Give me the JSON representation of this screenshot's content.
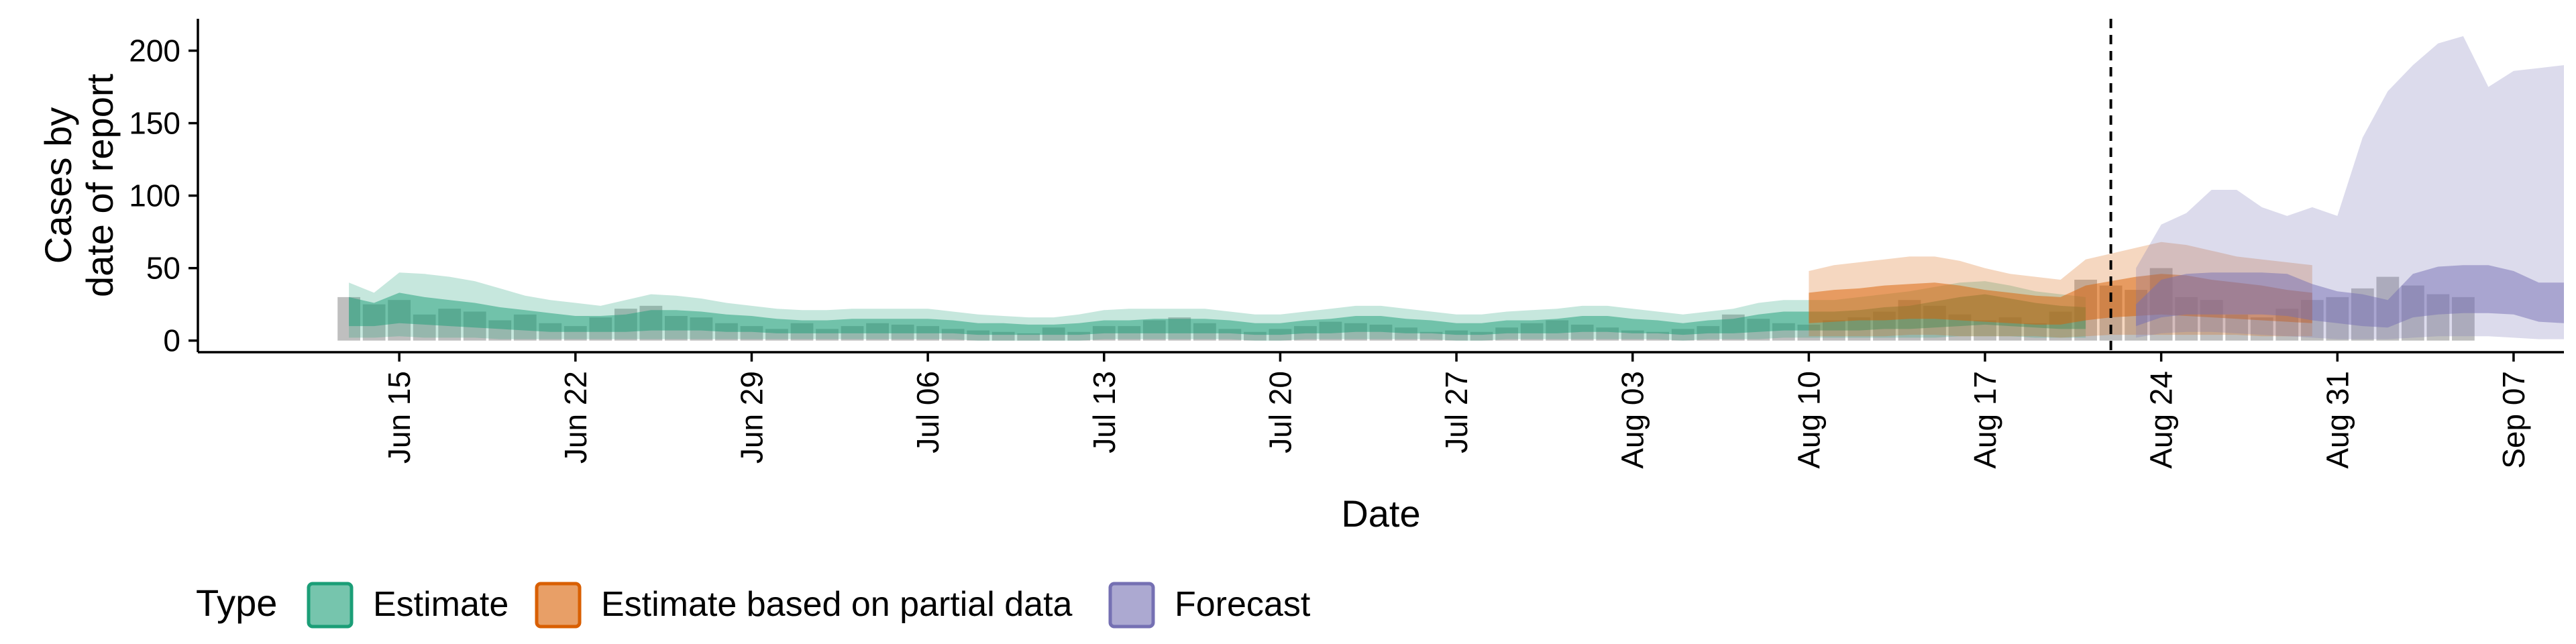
{
  "chart_data": {
    "type": "area",
    "xlabel": "Date",
    "ylabel": [
      "Cases by",
      "date of report"
    ],
    "ylim": [
      -8,
      222
    ],
    "xlim": [
      "2020-06-07",
      "2020-09-09"
    ],
    "y_ticks": [
      0,
      50,
      100,
      150,
      200
    ],
    "x_ticks": [
      {
        "date": "2020-06-15",
        "label": "Jun 15"
      },
      {
        "date": "2020-06-22",
        "label": "Jun 22"
      },
      {
        "date": "2020-06-29",
        "label": "Jun 29"
      },
      {
        "date": "2020-07-06",
        "label": "Jul 06"
      },
      {
        "date": "2020-07-13",
        "label": "Jul 13"
      },
      {
        "date": "2020-07-20",
        "label": "Jul 20"
      },
      {
        "date": "2020-07-27",
        "label": "Jul 27"
      },
      {
        "date": "2020-08-03",
        "label": "Aug 03"
      },
      {
        "date": "2020-08-10",
        "label": "Aug 10"
      },
      {
        "date": "2020-08-17",
        "label": "Aug 17"
      },
      {
        "date": "2020-08-24",
        "label": "Aug 24"
      },
      {
        "date": "2020-08-31",
        "label": "Aug 31"
      },
      {
        "date": "2020-09-07",
        "label": "Sep 07"
      }
    ],
    "reference_line": {
      "date": "2020-08-22",
      "style": "dashed"
    },
    "grid": false,
    "legend": {
      "title": "Type",
      "position": "bottom",
      "entries": [
        {
          "label": "Estimate",
          "color": "#1b9e77"
        },
        {
          "label": "Estimate based on partial data",
          "color": "#d95f02"
        },
        {
          "label": "Forecast",
          "color": "#7570b3"
        }
      ]
    },
    "observed_bars": {
      "color": "#808080",
      "start_date": "2020-06-13",
      "values": [
        30,
        25,
        28,
        18,
        22,
        20,
        14,
        18,
        12,
        10,
        16,
        22,
        24,
        17,
        16,
        12,
        10,
        8,
        12,
        8,
        10,
        12,
        11,
        10,
        8,
        7,
        6,
        5,
        9,
        6,
        10,
        10,
        14,
        16,
        12,
        8,
        6,
        8,
        10,
        13,
        12,
        11,
        9,
        6,
        7,
        6,
        9,
        12,
        14,
        11,
        9,
        7,
        6,
        8,
        10,
        18,
        15,
        12,
        11,
        14,
        16,
        20,
        28,
        24,
        18,
        14,
        16,
        12,
        20,
        42,
        38,
        35,
        50,
        30,
        28,
        18,
        16,
        22,
        28,
        30,
        36,
        44,
        38,
        32,
        30
      ]
    },
    "series": [
      {
        "name": "Estimate",
        "color": "#1b9e77",
        "start_date": "2020-06-13",
        "median": [
          21,
          17,
          23,
          20,
          18,
          17,
          15,
          14,
          12,
          11,
          11,
          12,
          14,
          14,
          13,
          12,
          11,
          10,
          9,
          9,
          10,
          10,
          10,
          10,
          9,
          8,
          8,
          7,
          7,
          8,
          9,
          9,
          10,
          10,
          10,
          9,
          8,
          8,
          9,
          10,
          11,
          11,
          10,
          9,
          8,
          8,
          9,
          9,
          10,
          11,
          11,
          10,
          9,
          8,
          9,
          10,
          12,
          13,
          13,
          13,
          14,
          15,
          16,
          18,
          20,
          21,
          19,
          17,
          16,
          15
        ],
        "inner_lower": [
          10,
          10,
          12,
          11,
          10,
          9,
          8,
          7,
          6,
          6,
          6,
          6,
          7,
          7,
          7,
          6,
          6,
          5,
          5,
          5,
          5,
          5,
          5,
          5,
          5,
          4,
          4,
          4,
          4,
          4,
          5,
          5,
          5,
          5,
          5,
          5,
          4,
          4,
          5,
          5,
          6,
          6,
          5,
          5,
          4,
          4,
          5,
          5,
          5,
          6,
          6,
          5,
          5,
          4,
          5,
          5,
          6,
          7,
          7,
          7,
          7,
          8,
          8,
          9,
          10,
          11,
          10,
          9,
          8,
          8
        ],
        "inner_upper": [
          30,
          26,
          33,
          30,
          28,
          26,
          23,
          21,
          19,
          17,
          17,
          18,
          21,
          21,
          20,
          18,
          17,
          15,
          14,
          14,
          15,
          15,
          15,
          15,
          14,
          12,
          12,
          11,
          11,
          12,
          14,
          14,
          15,
          15,
          15,
          14,
          12,
          12,
          14,
          15,
          17,
          17,
          15,
          14,
          12,
          12,
          14,
          14,
          15,
          17,
          17,
          15,
          14,
          12,
          14,
          15,
          18,
          20,
          20,
          20,
          21,
          23,
          24,
          27,
          30,
          32,
          29,
          26,
          24,
          23
        ],
        "outer_lower": [
          2,
          2,
          3,
          2,
          2,
          2,
          1,
          1,
          1,
          1,
          1,
          1,
          1,
          1,
          1,
          1,
          1,
          1,
          1,
          1,
          1,
          1,
          1,
          1,
          1,
          0,
          0,
          0,
          0,
          0,
          1,
          1,
          1,
          1,
          1,
          1,
          0,
          0,
          1,
          1,
          1,
          1,
          1,
          1,
          0,
          0,
          1,
          1,
          1,
          1,
          1,
          1,
          1,
          0,
          1,
          1,
          1,
          2,
          2,
          2,
          2,
          2,
          2,
          2,
          3,
          3,
          3,
          2,
          2,
          2
        ],
        "outer_upper": [
          40,
          33,
          47,
          46,
          44,
          41,
          36,
          31,
          28,
          26,
          24,
          28,
          32,
          31,
          29,
          26,
          24,
          22,
          21,
          21,
          22,
          22,
          22,
          22,
          20,
          18,
          17,
          16,
          16,
          18,
          21,
          22,
          22,
          22,
          22,
          20,
          18,
          18,
          20,
          22,
          24,
          24,
          22,
          20,
          18,
          18,
          20,
          21,
          22,
          24,
          24,
          22,
          20,
          18,
          20,
          22,
          26,
          28,
          28,
          28,
          30,
          32,
          34,
          37,
          40,
          41,
          38,
          34,
          32,
          30
        ]
      },
      {
        "name": "Estimate based on partial data",
        "color": "#d95f02",
        "start_date": "2020-08-10",
        "median": [
          22,
          24,
          25,
          26,
          27,
          28,
          26,
          24,
          22,
          21,
          20,
          26,
          28,
          30,
          32,
          31,
          29,
          27,
          26,
          24,
          22
        ],
        "inner_lower": [
          12,
          13,
          14,
          14,
          15,
          15,
          14,
          13,
          12,
          11,
          11,
          14,
          16,
          17,
          18,
          17,
          16,
          15,
          14,
          13,
          12
        ],
        "inner_upper": [
          33,
          35,
          36,
          38,
          39,
          40,
          38,
          35,
          33,
          31,
          30,
          38,
          41,
          44,
          46,
          45,
          42,
          40,
          38,
          35,
          33
        ],
        "outer_lower": [
          3,
          3,
          3,
          3,
          4,
          4,
          3,
          3,
          3,
          3,
          2,
          3,
          4,
          4,
          4,
          4,
          4,
          4,
          3,
          3,
          3
        ],
        "outer_upper": [
          48,
          52,
          54,
          56,
          58,
          58,
          55,
          50,
          46,
          44,
          42,
          56,
          60,
          64,
          68,
          66,
          62,
          58,
          56,
          54,
          52
        ]
      },
      {
        "name": "Forecast",
        "color": "#7570b3",
        "start_date": "2020-08-23",
        "median": [
          18,
          30,
          32,
          33,
          33,
          33,
          32,
          27,
          23,
          21,
          19,
          31,
          34,
          35,
          35,
          33,
          27,
          27
        ],
        "inner_lower": [
          10,
          16,
          18,
          18,
          18,
          18,
          17,
          14,
          12,
          10,
          9,
          16,
          18,
          19,
          19,
          18,
          13,
          12
        ],
        "inner_upper": [
          25,
          42,
          46,
          47,
          47,
          47,
          46,
          39,
          34,
          32,
          28,
          46,
          51,
          52,
          52,
          48,
          40,
          40
        ],
        "outer_lower": [
          2,
          5,
          6,
          6,
          5,
          4,
          3,
          2,
          1,
          1,
          1,
          2,
          3,
          3,
          3,
          2,
          1,
          1
        ],
        "outer_upper": [
          50,
          80,
          88,
          104,
          104,
          92,
          86,
          92,
          86,
          140,
          172,
          190,
          205,
          210,
          175,
          186,
          188,
          190
        ]
      }
    ]
  }
}
